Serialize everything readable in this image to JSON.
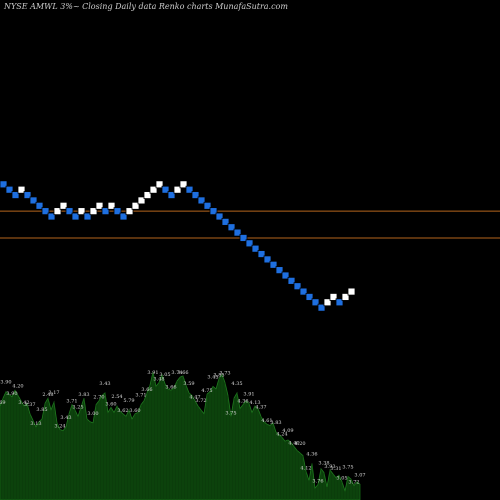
{
  "chart_data": {
    "type": "renko",
    "title": "NYSE AMWL  3%~   Closing Daily data  Renko  charts MunafaSutra.com",
    "colors": {
      "background": "#000000",
      "up_brick": "#ffffff",
      "down_brick": "#1e6fe0",
      "level_line": "#b5651d",
      "volume_fill": "#0b3d0b",
      "volume_stroke": "#1f7a1f",
      "label": "#dddddd"
    },
    "price_range": [
      16.2,
      20.9
    ],
    "levels": [
      19.2,
      18.7
    ],
    "bricks": [
      {
        "dir": "down",
        "value": 19.7
      },
      {
        "dir": "down",
        "value": 19.6
      },
      {
        "dir": "down",
        "value": 19.5
      },
      {
        "dir": "up",
        "value": 19.6
      },
      {
        "dir": "down",
        "value": 19.5
      },
      {
        "dir": "down",
        "value": 19.4
      },
      {
        "dir": "down",
        "value": 19.3
      },
      {
        "dir": "down",
        "value": 19.2
      },
      {
        "dir": "down",
        "value": 19.1
      },
      {
        "dir": "up",
        "value": 19.2
      },
      {
        "dir": "up",
        "value": 19.3
      },
      {
        "dir": "down",
        "value": 19.2
      },
      {
        "dir": "down",
        "value": 19.1
      },
      {
        "dir": "up",
        "value": 19.2
      },
      {
        "dir": "down",
        "value": 19.1
      },
      {
        "dir": "up",
        "value": 19.2
      },
      {
        "dir": "up",
        "value": 19.3
      },
      {
        "dir": "down",
        "value": 19.2
      },
      {
        "dir": "up",
        "value": 19.3
      },
      {
        "dir": "down",
        "value": 19.2
      },
      {
        "dir": "down",
        "value": 19.1
      },
      {
        "dir": "up",
        "value": 19.2
      },
      {
        "dir": "up",
        "value": 19.3
      },
      {
        "dir": "up",
        "value": 19.4
      },
      {
        "dir": "up",
        "value": 19.5
      },
      {
        "dir": "up",
        "value": 19.6
      },
      {
        "dir": "up",
        "value": 19.7
      },
      {
        "dir": "down",
        "value": 19.6
      },
      {
        "dir": "down",
        "value": 19.5
      },
      {
        "dir": "up",
        "value": 19.6
      },
      {
        "dir": "up",
        "value": 19.7
      },
      {
        "dir": "down",
        "value": 19.6
      },
      {
        "dir": "down",
        "value": 19.5
      },
      {
        "dir": "down",
        "value": 19.4
      },
      {
        "dir": "down",
        "value": 19.3
      },
      {
        "dir": "down",
        "value": 19.2
      },
      {
        "dir": "down",
        "value": 19.1
      },
      {
        "dir": "down",
        "value": 19.0
      },
      {
        "dir": "down",
        "value": 18.9
      },
      {
        "dir": "down",
        "value": 18.8
      },
      {
        "dir": "down",
        "value": 18.7
      },
      {
        "dir": "down",
        "value": 18.6
      },
      {
        "dir": "down",
        "value": 18.5
      },
      {
        "dir": "down",
        "value": 18.4
      },
      {
        "dir": "down",
        "value": 18.3
      },
      {
        "dir": "down",
        "value": 18.2
      },
      {
        "dir": "down",
        "value": 18.1
      },
      {
        "dir": "down",
        "value": 18.0
      },
      {
        "dir": "down",
        "value": 17.9
      },
      {
        "dir": "down",
        "value": 17.8
      },
      {
        "dir": "down",
        "value": 17.7
      },
      {
        "dir": "down",
        "value": 17.6
      },
      {
        "dir": "down",
        "value": 17.5
      },
      {
        "dir": "down",
        "value": 17.4
      },
      {
        "dir": "up",
        "value": 17.5
      },
      {
        "dir": "up",
        "value": 17.6
      },
      {
        "dir": "down",
        "value": 17.5
      },
      {
        "dir": "up",
        "value": 17.6
      },
      {
        "dir": "up",
        "value": 17.7
      }
    ],
    "volume": {
      "max": 9.8,
      "values": [
        7.2,
        7.8,
        8.3,
        8.1,
        7.9,
        8.4,
        8.0,
        7.6,
        7.2,
        7.4,
        6.6,
        6.1,
        5.6,
        6.0,
        6.2,
        7.4,
        7.8,
        6.9,
        7.5,
        5.9,
        5.4,
        5.3,
        5.6,
        6.6,
        7.3,
        6.9,
        6.4,
        7.1,
        7.8,
        6.2,
        6.0,
        5.9,
        7.3,
        7.6,
        8.0,
        8.2,
        6.7,
        7.1,
        6.7,
        7.2,
        6.8,
        6.6,
        6.4,
        6.9,
        6.2,
        6.6,
        6.7,
        7.3,
        7.6,
        8.2,
        8.8,
        9.8,
        8.7,
        9.0,
        9.6,
        8.9,
        8.5,
        8.4,
        8.6,
        9.1,
        9.4,
        9.5,
        8.8,
        8.2,
        8.0,
        7.6,
        7.2,
        6.9,
        6.6,
        8.1,
        8.3,
        8.7,
        8.5,
        9.3,
        9.6,
        9.0,
        8.0,
        6.4,
        7.8,
        8.2,
        7.0,
        7.3,
        7.6,
        7.4,
        6.7,
        7.2,
        7.0,
        6.4,
        6.0,
        5.8,
        5.7,
        5.9,
        5.2,
        5.0,
        4.8,
        4.5,
        4.6,
        4.4,
        4.1,
        3.8,
        3.6,
        3.4,
        2.2,
        1.5,
        2.8,
        0.9,
        1.2,
        2.4,
        2.1,
        1.0,
        2.3,
        2.0,
        1.7,
        1.9,
        1.4,
        0.7,
        1.8,
        1.6,
        1.1,
        1.4,
        1.2
      ]
    },
    "volume_labels": [
      "4.69",
      "3.90",
      "3.90",
      "4.20",
      "3.42",
      "3.37",
      "3.13",
      "3.85",
      "2.48",
      "3.17",
      "3.24",
      "3.43",
      "3.71",
      "3.25",
      "3.83",
      "3.00",
      "2.70",
      "3.43",
      "3.60",
      "2.54",
      "3.62",
      "5.79",
      "3.60",
      "3.71",
      "3.66",
      "3.91",
      "3.48",
      "3.05",
      "3.66",
      "3.74",
      "3.66",
      "3.59",
      "4.47",
      "3.72",
      "4.75",
      "3.45",
      "3.85",
      "3.73",
      "3.75",
      "4.35",
      "4.36",
      "3.91",
      "4.13",
      "4.37",
      "4.61",
      "3.83",
      "4.24",
      "4.09",
      "4.40",
      "4.20",
      "4.12",
      "4.36",
      "3.76",
      "3.38",
      "3.93",
      "3.31",
      "3.05",
      "3.75",
      "3.72",
      "3.07"
    ]
  }
}
